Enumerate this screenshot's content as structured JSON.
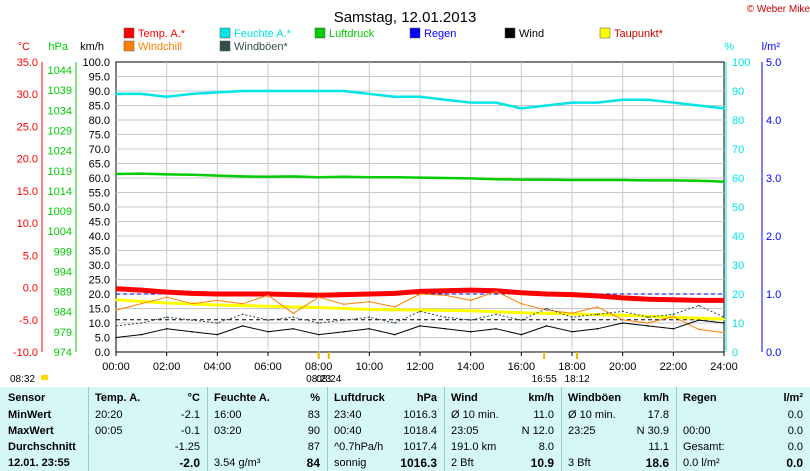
{
  "title": "Samstag, 12.01.2013",
  "copyright": "© Weber Mike",
  "colors": {
    "temp": "#ff0000",
    "humidity": "#00e5e5",
    "pressure": "#00cc00",
    "rain": "#0000ff",
    "wind": "#000000",
    "dewpoint": "#ffff00",
    "windchill": "#ff8000",
    "gust": "#2f4f4f",
    "table_bg": "#d6f7f7"
  },
  "legend": [
    {
      "label": "Temp. A.*",
      "key": "temp"
    },
    {
      "label": "Feuchte A.*",
      "key": "humidity"
    },
    {
      "label": "Luftdruck",
      "key": "pressure"
    },
    {
      "label": "Regen",
      "key": "rain"
    },
    {
      "label": "Wind",
      "key": "wind"
    },
    {
      "label": "Taupunkt*",
      "key": "dewpoint"
    },
    {
      "label": "Windchill",
      "key": "windchill"
    },
    {
      "label": "Windböen*",
      "key": "gust"
    }
  ],
  "chart_data": {
    "type": "line",
    "x_ticks": [
      "00:00",
      "02:00",
      "04:00",
      "06:00",
      "08:00",
      "10:00",
      "12:00",
      "14:00",
      "16:00",
      "18:00",
      "20:00",
      "22:00",
      "24:00"
    ],
    "x_range_hours": [
      0,
      24
    ],
    "axes": {
      "temp_c": {
        "unit": "°C",
        "range": [
          -10,
          35
        ],
        "ticks": [
          "35.0",
          "30.0",
          "25.0",
          "20.0",
          "15.0",
          "10.0",
          "5.0",
          "0.0",
          "-5.0",
          "-10.0"
        ]
      },
      "pressure_hpa": {
        "unit": "hPa",
        "range": [
          974,
          1046
        ],
        "ticks": [
          "1044",
          "1039",
          "1034",
          "1029",
          "1024",
          "1019",
          "1014",
          "1009",
          "1004",
          "999",
          "994",
          "989",
          "984",
          "979",
          "974"
        ]
      },
      "wind_kmh": {
        "unit": "km/h",
        "range": [
          0,
          100
        ],
        "ticks": [
          "100.0",
          "95.0",
          "90.0",
          "85.0",
          "80.0",
          "75.0",
          "70.0",
          "65.0",
          "60.0",
          "55.0",
          "50.0",
          "45.0",
          "40.0",
          "35.0",
          "30.0",
          "25.0",
          "20.0",
          "15.0",
          "10.0",
          "5.0",
          "0.0"
        ]
      },
      "humidity_pct": {
        "unit": "%",
        "range": [
          0,
          100
        ],
        "ticks": [
          "100",
          "90",
          "80",
          "70",
          "60",
          "50",
          "40",
          "30",
          "20",
          "10",
          "0"
        ]
      },
      "rain_lm2": {
        "unit": "l/m²",
        "range": [
          0,
          5
        ],
        "ticks": [
          "5.0",
          "4.0",
          "3.0",
          "2.0",
          "1.0",
          "0.0"
        ]
      }
    },
    "series": [
      {
        "name": "Feuchte A.*",
        "key": "humidity",
        "axis": "humidity_pct",
        "x": [
          0,
          1,
          2,
          3,
          4,
          5,
          6,
          7,
          8,
          9,
          10,
          11,
          12,
          13,
          14,
          15,
          16,
          17,
          18,
          19,
          20,
          21,
          22,
          23,
          24
        ],
        "y": [
          89,
          89,
          88,
          89,
          89.5,
          90,
          90,
          90,
          90,
          90,
          89,
          88,
          88,
          87,
          86,
          86,
          84,
          85,
          86,
          86,
          87,
          87,
          86,
          85,
          84
        ]
      },
      {
        "name": "Luftdruck",
        "key": "pressure",
        "axis": "pressure_hpa",
        "x": [
          0,
          1,
          2,
          3,
          4,
          5,
          6,
          7,
          8,
          9,
          10,
          11,
          12,
          13,
          14,
          15,
          16,
          17,
          18,
          19,
          20,
          21,
          22,
          23,
          24
        ],
        "y": [
          1018.2,
          1018.3,
          1018.1,
          1018.0,
          1017.8,
          1017.6,
          1017.5,
          1017.6,
          1017.4,
          1017.5,
          1017.4,
          1017.4,
          1017.3,
          1017.2,
          1017.1,
          1016.9,
          1016.8,
          1016.8,
          1016.7,
          1016.7,
          1016.7,
          1016.6,
          1016.6,
          1016.5,
          1016.3
        ]
      },
      {
        "name": "Temp. A.*",
        "key": "temp",
        "axis": "temp_c",
        "x": [
          0,
          1,
          2,
          3,
          4,
          5,
          6,
          7,
          8,
          9,
          10,
          11,
          12,
          13,
          14,
          15,
          16,
          17,
          18,
          19,
          20,
          21,
          22,
          23,
          24
        ],
        "y": [
          -0.2,
          -0.4,
          -0.7,
          -0.9,
          -1.0,
          -1.0,
          -1.0,
          -1.1,
          -1.2,
          -1.1,
          -1.0,
          -0.9,
          -0.6,
          -0.5,
          -0.4,
          -0.5,
          -0.8,
          -1.0,
          -1.1,
          -1.3,
          -1.6,
          -1.8,
          -1.9,
          -2.0,
          -2.0
        ]
      },
      {
        "name": "Taupunkt*",
        "key": "dewpoint",
        "axis": "temp_c",
        "x": [
          0,
          2,
          4,
          6,
          8,
          10,
          12,
          14,
          16,
          18,
          20,
          22,
          24
        ],
        "y": [
          -1.9,
          -2.4,
          -2.7,
          -2.9,
          -3.1,
          -3.4,
          -3.5,
          -3.6,
          -3.9,
          -4.1,
          -4.3,
          -4.6,
          -4.9
        ]
      },
      {
        "name": "Windchill",
        "key": "windchill",
        "axis": "temp_c",
        "x": [
          0,
          1,
          2,
          3,
          4,
          5,
          6,
          7,
          8,
          9,
          10,
          11,
          12,
          13,
          14,
          15,
          16,
          17,
          18,
          19,
          20,
          21,
          22,
          23,
          24
        ],
        "y": [
          -3.5,
          -2.5,
          -1.5,
          -2.5,
          -2.0,
          -2.5,
          -1.2,
          -4.0,
          -1.5,
          -2.6,
          -2.2,
          -3.0,
          -1.0,
          -1.2,
          -2.0,
          -0.6,
          -2.5,
          -3.5,
          -4.0,
          -3.0,
          -5.0,
          -5.5,
          -4.5,
          -6.5,
          -7.0
        ]
      },
      {
        "name": "Wind",
        "key": "wind",
        "axis": "wind_kmh",
        "x": [
          0,
          1,
          2,
          3,
          4,
          5,
          6,
          7,
          8,
          9,
          10,
          11,
          12,
          13,
          14,
          15,
          16,
          17,
          18,
          19,
          20,
          21,
          22,
          23,
          24
        ],
        "y": [
          5,
          6,
          8,
          7,
          6,
          9,
          7,
          8,
          6,
          7,
          8,
          6,
          9,
          8,
          7,
          8,
          6,
          9,
          7,
          8,
          10,
          9,
          8,
          11,
          10
        ]
      },
      {
        "name": "Windböen*",
        "key": "gust",
        "axis": "wind_kmh",
        "x": [
          0,
          1,
          2,
          3,
          4,
          5,
          6,
          7,
          8,
          9,
          10,
          11,
          12,
          13,
          14,
          15,
          16,
          17,
          18,
          19,
          20,
          21,
          22,
          23,
          24
        ],
        "y": [
          9,
          10,
          12,
          11,
          10,
          13,
          11,
          12,
          10,
          11,
          12,
          10,
          14,
          12,
          11,
          13,
          11,
          15,
          12,
          13,
          14,
          12,
          13,
          16,
          12
        ]
      }
    ],
    "reference_lines": [
      {
        "key": "wind",
        "axis": "wind_kmh",
        "value": 11.1
      },
      {
        "key": "rain",
        "axis": "rain_lm2",
        "value": 1.0
      }
    ],
    "event_labels": [
      {
        "text": "08:32",
        "pos": "left-edge"
      },
      {
        "text": "08:23",
        "hour": 8.0
      },
      {
        "text": "08:24",
        "hour": 8.4
      },
      {
        "text": "16:55",
        "hour": 16.9
      },
      {
        "text": "18:12",
        "hour": 18.2
      }
    ]
  },
  "table": {
    "columns": [
      {
        "name": "sensor",
        "header": "Sensor",
        "rows": [
          "MinWert",
          "MaxWert",
          "Durchschnitt",
          "12.01. 23:55"
        ]
      },
      {
        "name": "temp",
        "header": "Temp. A.",
        "unit": "°C",
        "rows": [
          [
            "20:20",
            "-2.1"
          ],
          [
            "00:05",
            "-0.1"
          ],
          [
            "",
            "-1.25"
          ],
          [
            "",
            "-2.0"
          ]
        ]
      },
      {
        "name": "humidity",
        "header": "Feuchte A.",
        "unit": "%",
        "rows": [
          [
            "16:00",
            "83"
          ],
          [
            "03:20",
            "90"
          ],
          [
            "",
            "87"
          ],
          [
            "3.54 g/m³",
            "84"
          ]
        ]
      },
      {
        "name": "pressure",
        "header": "Luftdruck",
        "unit": "hPa",
        "rows": [
          [
            "23:40",
            "1016.3"
          ],
          [
            "00:40",
            "1018.4"
          ],
          [
            "^0.7hPa/h",
            "1017.4"
          ],
          [
            "sonnig",
            "1016.3"
          ]
        ]
      },
      {
        "name": "wind",
        "header": "Wind",
        "unit": "km/h",
        "rows": [
          [
            "Ø 10 min.",
            "11.0"
          ],
          [
            "23:05",
            "N 12.0"
          ],
          [
            "191.0 km",
            "8.0"
          ],
          [
            "2 Bft",
            "10.9"
          ]
        ]
      },
      {
        "name": "gust",
        "header": "Windböen",
        "unit": "km/h",
        "rows": [
          [
            "Ø 10 min.",
            "17.8"
          ],
          [
            "23:25",
            "N 30.9"
          ],
          [
            "",
            "11.1"
          ],
          [
            "3 Bft",
            "18.6"
          ]
        ]
      },
      {
        "name": "rain",
        "header": "Regen",
        "unit": "l/m²",
        "rows": [
          [
            "",
            "0.0"
          ],
          [
            "00:00",
            "0.0"
          ],
          [
            "Gesamt:",
            "0.0"
          ],
          [
            "0.0 l/m²",
            "0.0"
          ]
        ]
      }
    ]
  }
}
